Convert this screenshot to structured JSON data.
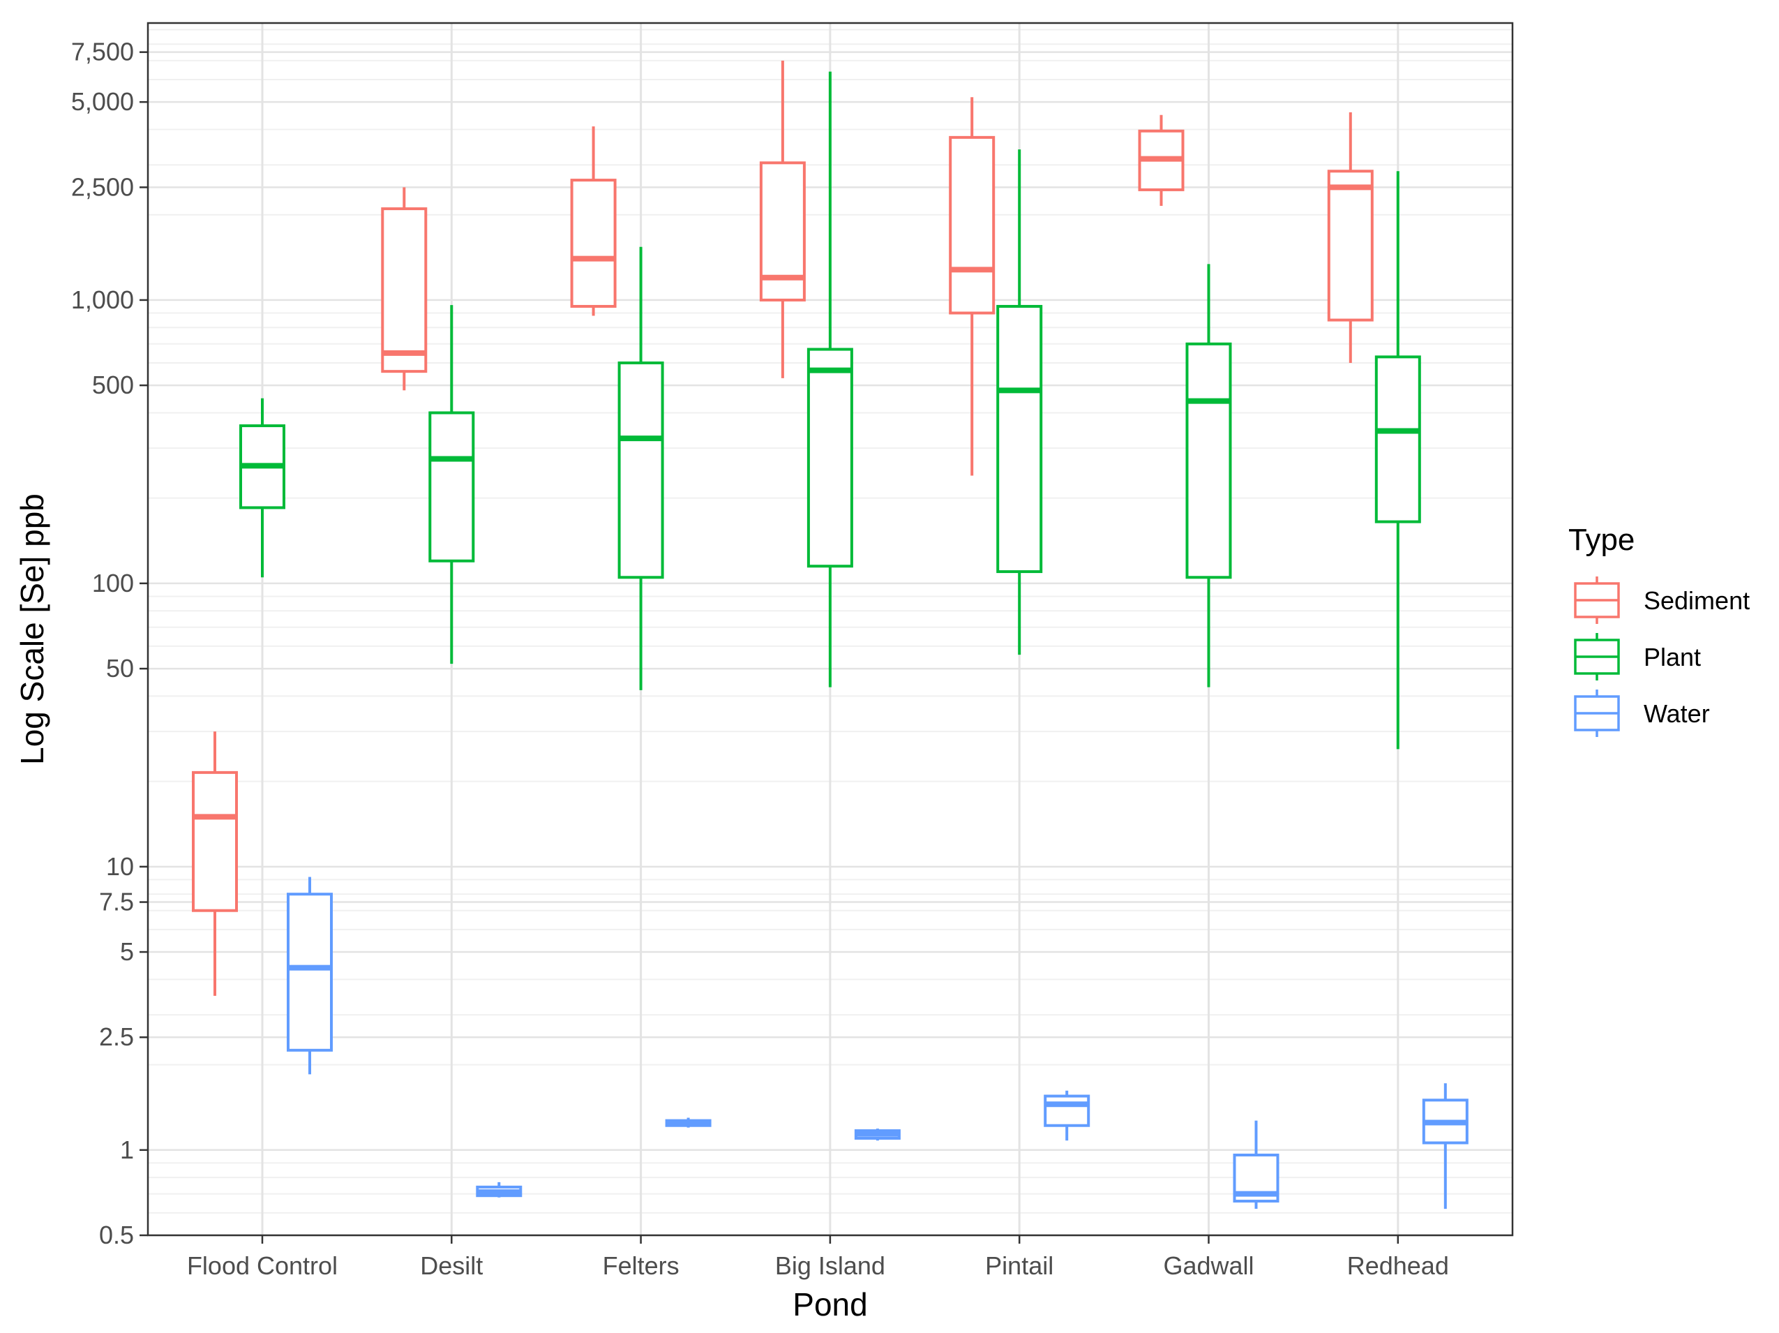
{
  "chart_data": {
    "type": "boxplot",
    "xlabel": "Pond",
    "ylabel": "Log Scale [Se] ppb",
    "y_scale": "log10",
    "ylim": [
      0.5,
      9500
    ],
    "grid": true,
    "legend": {
      "title": "Type",
      "position": "right"
    },
    "y_ticks": [
      0.5,
      1,
      2.5,
      5,
      7.5,
      10,
      50,
      100,
      500,
      1000,
      2500,
      5000,
      7500
    ],
    "y_tick_labels": [
      "0.5",
      "1",
      "2.5",
      "5",
      "7.5",
      "10",
      "50",
      "100",
      "500",
      "1,000",
      "2,500",
      "5,000",
      "7,500"
    ],
    "categories": [
      "Flood Control",
      "Desilt",
      "Felters",
      "Big Island",
      "Pintail",
      "Gadwall",
      "Redhead"
    ],
    "series": [
      {
        "name": "Sediment",
        "color": "#F8766D",
        "boxes": [
          {
            "min": 3.5,
            "q1": 7,
            "median": 15,
            "q3": 21.5,
            "max": 30
          },
          {
            "min": 480,
            "q1": 560,
            "median": 650,
            "q3": 2100,
            "max": 2500
          },
          {
            "min": 880,
            "q1": 950,
            "median": 1400,
            "q3": 2650,
            "max": 4100
          },
          {
            "min": 530,
            "q1": 1000,
            "median": 1200,
            "q3": 3050,
            "max": 7000
          },
          {
            "min": 240,
            "q1": 900,
            "median": 1280,
            "q3": 3750,
            "max": 5200
          },
          {
            "min": 2150,
            "q1": 2450,
            "median": 3150,
            "q3": 3950,
            "max": 4500
          },
          {
            "min": 600,
            "q1": 850,
            "median": 2500,
            "q3": 2850,
            "max": 4600
          }
        ]
      },
      {
        "name": "Plant",
        "color": "#00BA38",
        "boxes": [
          {
            "min": 105,
            "q1": 185,
            "median": 260,
            "q3": 360,
            "max": 450
          },
          {
            "min": 52,
            "q1": 120,
            "median": 275,
            "q3": 400,
            "max": 960
          },
          {
            "min": 42,
            "q1": 105,
            "median": 325,
            "q3": 600,
            "max": 1540
          },
          {
            "min": 43,
            "q1": 115,
            "median": 565,
            "q3": 670,
            "max": 6400
          },
          {
            "min": 56,
            "q1": 110,
            "median": 480,
            "q3": 950,
            "max": 3400
          },
          {
            "min": 43,
            "q1": 105,
            "median": 440,
            "q3": 700,
            "max": 1340
          },
          {
            "min": 26,
            "q1": 165,
            "median": 345,
            "q3": 630,
            "max": 2850
          }
        ]
      },
      {
        "name": "Water",
        "color": "#619CFF",
        "boxes": [
          {
            "min": 1.85,
            "q1": 2.25,
            "median": 4.4,
            "q3": 8.0,
            "max": 9.2
          },
          {
            "min": 0.68,
            "q1": 0.69,
            "median": 0.71,
            "q3": 0.74,
            "max": 0.77
          },
          {
            "min": 1.2,
            "q1": 1.22,
            "median": 1.25,
            "q3": 1.27,
            "max": 1.3
          },
          {
            "min": 1.08,
            "q1": 1.1,
            "median": 1.14,
            "q3": 1.17,
            "max": 1.19
          },
          {
            "min": 1.08,
            "q1": 1.22,
            "median": 1.45,
            "q3": 1.55,
            "max": 1.62
          },
          {
            "min": 0.62,
            "q1": 0.66,
            "median": 0.7,
            "q3": 0.96,
            "max": 1.27
          },
          {
            "min": 0.62,
            "q1": 1.06,
            "median": 1.25,
            "q3": 1.5,
            "max": 1.72
          }
        ]
      }
    ]
  }
}
